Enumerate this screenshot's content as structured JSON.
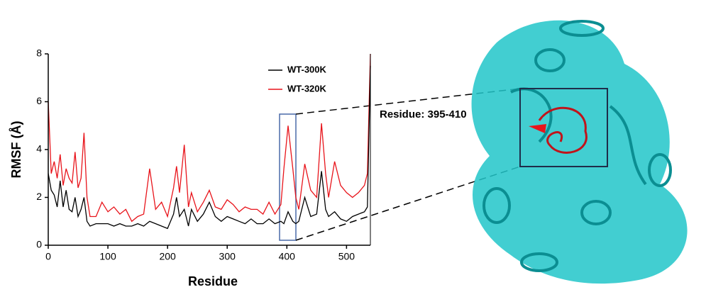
{
  "chart_data": {
    "type": "line",
    "xlabel": "Residue",
    "ylabel": "RMSF (Å)",
    "annotation": "Residue: 395-410",
    "x": [
      0,
      5,
      10,
      15,
      20,
      25,
      30,
      35,
      40,
      45,
      50,
      55,
      60,
      65,
      70,
      80,
      90,
      100,
      110,
      120,
      130,
      140,
      150,
      160,
      170,
      180,
      190,
      200,
      210,
      215,
      220,
      228,
      235,
      240,
      250,
      260,
      270,
      280,
      290,
      300,
      310,
      320,
      330,
      340,
      350,
      360,
      370,
      380,
      390,
      395,
      402,
      410,
      415,
      420,
      430,
      440,
      450,
      458,
      465,
      470,
      480,
      490,
      500,
      510,
      520,
      530,
      535,
      540
    ],
    "series": [
      {
        "name": "WT-300K",
        "color": "#000000",
        "values": [
          3.0,
          2.3,
          2.1,
          1.6,
          2.7,
          1.6,
          2.3,
          1.5,
          1.4,
          2.0,
          1.2,
          1.5,
          2.0,
          1.0,
          0.8,
          0.9,
          0.9,
          0.9,
          0.8,
          0.9,
          0.8,
          0.8,
          0.9,
          0.8,
          1.0,
          0.9,
          0.8,
          0.7,
          1.3,
          2.0,
          1.2,
          1.5,
          0.8,
          1.5,
          1.0,
          1.3,
          1.8,
          1.2,
          1.0,
          1.2,
          1.1,
          1.0,
          0.9,
          1.1,
          0.9,
          0.9,
          1.1,
          0.9,
          1.0,
          0.9,
          1.4,
          1.0,
          0.9,
          1.0,
          2.0,
          1.2,
          1.3,
          3.1,
          1.5,
          1.2,
          1.4,
          1.1,
          1.0,
          1.2,
          1.3,
          1.4,
          1.6,
          7.5
        ]
      },
      {
        "name": "WT-320K",
        "color": "#e8141b",
        "values": [
          6.0,
          3.0,
          3.5,
          2.8,
          3.8,
          2.5,
          3.2,
          2.8,
          2.6,
          3.9,
          2.4,
          2.8,
          4.7,
          2.0,
          1.2,
          1.2,
          1.8,
          1.4,
          1.6,
          1.3,
          1.5,
          1.0,
          1.2,
          1.3,
          3.2,
          1.5,
          1.8,
          1.2,
          2.4,
          3.3,
          2.2,
          4.2,
          1.6,
          2.2,
          1.4,
          1.8,
          2.3,
          1.6,
          1.5,
          1.9,
          1.7,
          1.4,
          1.6,
          1.5,
          1.5,
          1.3,
          1.8,
          1.3,
          1.7,
          3.2,
          5.0,
          3.2,
          2.0,
          1.5,
          3.4,
          2.3,
          2.0,
          5.1,
          3.0,
          2.0,
          3.5,
          2.5,
          2.2,
          2.0,
          2.2,
          2.5,
          3.0,
          8.0
        ]
      }
    ],
    "xlim": [
      0,
      540
    ],
    "xticks": [
      0,
      100,
      200,
      300,
      400,
      500
    ],
    "ylim": [
      0,
      8
    ],
    "yticks": [
      0,
      2,
      4,
      6,
      8
    ]
  }
}
